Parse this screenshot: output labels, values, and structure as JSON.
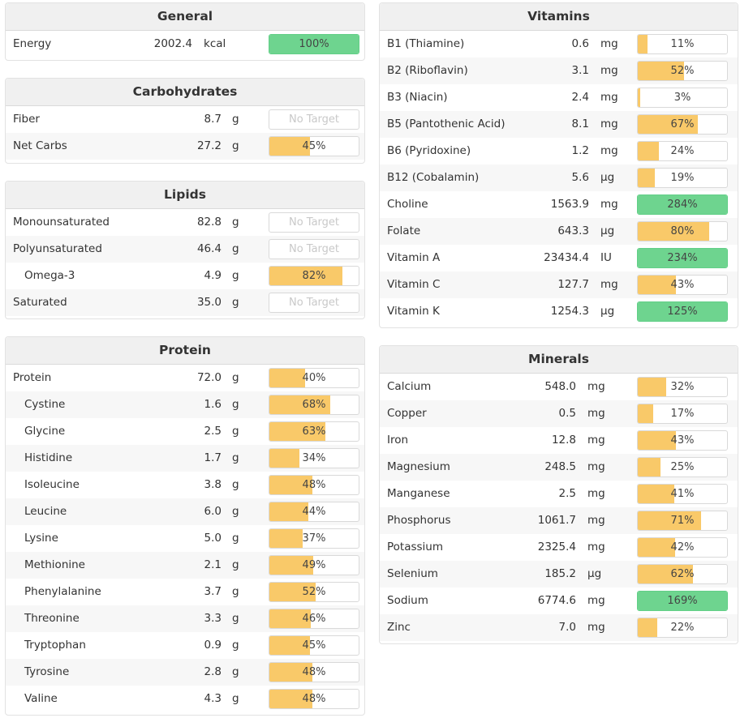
{
  "colors": {
    "yellow": "#f9c969",
    "green": "#6ed48f",
    "header_bg": "#f0f0f0"
  },
  "general": {
    "title": "General",
    "rows": [
      {
        "name": "Energy",
        "amount": "2002.4",
        "unit": "kcal",
        "pct": "100%",
        "fill": 100
      }
    ]
  },
  "carbs": {
    "title": "Carbohydrates",
    "rows": [
      {
        "name": "Fiber",
        "amount": "8.7",
        "unit": "g",
        "pct": "No Target",
        "fill": null
      },
      {
        "name": "Net Carbs",
        "amount": "27.2",
        "unit": "g",
        "pct": "45%",
        "fill": 45
      }
    ]
  },
  "lipids": {
    "title": "Lipids",
    "rows": [
      {
        "name": "Monounsaturated",
        "amount": "82.8",
        "unit": "g",
        "pct": "No Target",
        "fill": null
      },
      {
        "name": "Polyunsaturated",
        "amount": "46.4",
        "unit": "g",
        "pct": "No Target",
        "fill": null
      },
      {
        "name": "Omega-3",
        "amount": "4.9",
        "unit": "g",
        "pct": "82%",
        "fill": 82,
        "indent": true
      },
      {
        "name": "Saturated",
        "amount": "35.0",
        "unit": "g",
        "pct": "No Target",
        "fill": null
      }
    ]
  },
  "protein": {
    "title": "Protein",
    "rows": [
      {
        "name": "Protein",
        "amount": "72.0",
        "unit": "g",
        "pct": "40%",
        "fill": 40
      },
      {
        "name": "Cystine",
        "amount": "1.6",
        "unit": "g",
        "pct": "68%",
        "fill": 68,
        "indent": true
      },
      {
        "name": "Glycine",
        "amount": "2.5",
        "unit": "g",
        "pct": "63%",
        "fill": 63,
        "indent": true
      },
      {
        "name": "Histidine",
        "amount": "1.7",
        "unit": "g",
        "pct": "34%",
        "fill": 34,
        "indent": true
      },
      {
        "name": "Isoleucine",
        "amount": "3.8",
        "unit": "g",
        "pct": "48%",
        "fill": 48,
        "indent": true
      },
      {
        "name": "Leucine",
        "amount": "6.0",
        "unit": "g",
        "pct": "44%",
        "fill": 44,
        "indent": true
      },
      {
        "name": "Lysine",
        "amount": "5.0",
        "unit": "g",
        "pct": "37%",
        "fill": 37,
        "indent": true
      },
      {
        "name": "Methionine",
        "amount": "2.1",
        "unit": "g",
        "pct": "49%",
        "fill": 49,
        "indent": true
      },
      {
        "name": "Phenylalanine",
        "amount": "3.7",
        "unit": "g",
        "pct": "52%",
        "fill": 52,
        "indent": true
      },
      {
        "name": "Threonine",
        "amount": "3.3",
        "unit": "g",
        "pct": "46%",
        "fill": 46,
        "indent": true
      },
      {
        "name": "Tryptophan",
        "amount": "0.9",
        "unit": "g",
        "pct": "45%",
        "fill": 45,
        "indent": true
      },
      {
        "name": "Tyrosine",
        "amount": "2.8",
        "unit": "g",
        "pct": "48%",
        "fill": 48,
        "indent": true
      },
      {
        "name": "Valine",
        "amount": "4.3",
        "unit": "g",
        "pct": "48%",
        "fill": 48,
        "indent": true
      }
    ]
  },
  "vitamins": {
    "title": "Vitamins",
    "rows": [
      {
        "name": "B1 (Thiamine)",
        "amount": "0.6",
        "unit": "mg",
        "pct": "11%",
        "fill": 11
      },
      {
        "name": "B2 (Riboflavin)",
        "amount": "3.1",
        "unit": "mg",
        "pct": "52%",
        "fill": 52
      },
      {
        "name": "B3 (Niacin)",
        "amount": "2.4",
        "unit": "mg",
        "pct": "3%",
        "fill": 3
      },
      {
        "name": "B5 (Pantothenic Acid)",
        "amount": "8.1",
        "unit": "mg",
        "pct": "67%",
        "fill": 67
      },
      {
        "name": "B6 (Pyridoxine)",
        "amount": "1.2",
        "unit": "mg",
        "pct": "24%",
        "fill": 24
      },
      {
        "name": "B12 (Cobalamin)",
        "amount": "5.6",
        "unit": "µg",
        "pct": "19%",
        "fill": 19
      },
      {
        "name": "Choline",
        "amount": "1563.9",
        "unit": "mg",
        "pct": "284%",
        "fill": 284
      },
      {
        "name": "Folate",
        "amount": "643.3",
        "unit": "µg",
        "pct": "80%",
        "fill": 80
      },
      {
        "name": "Vitamin A",
        "amount": "23434.4",
        "unit": "IU",
        "pct": "234%",
        "fill": 234
      },
      {
        "name": "Vitamin C",
        "amount": "127.7",
        "unit": "mg",
        "pct": "43%",
        "fill": 43
      },
      {
        "name": "Vitamin K",
        "amount": "1254.3",
        "unit": "µg",
        "pct": "125%",
        "fill": 125
      }
    ]
  },
  "minerals": {
    "title": "Minerals",
    "rows": [
      {
        "name": "Calcium",
        "amount": "548.0",
        "unit": "mg",
        "pct": "32%",
        "fill": 32
      },
      {
        "name": "Copper",
        "amount": "0.5",
        "unit": "mg",
        "pct": "17%",
        "fill": 17
      },
      {
        "name": "Iron",
        "amount": "12.8",
        "unit": "mg",
        "pct": "43%",
        "fill": 43
      },
      {
        "name": "Magnesium",
        "amount": "248.5",
        "unit": "mg",
        "pct": "25%",
        "fill": 25
      },
      {
        "name": "Manganese",
        "amount": "2.5",
        "unit": "mg",
        "pct": "41%",
        "fill": 41
      },
      {
        "name": "Phosphorus",
        "amount": "1061.7",
        "unit": "mg",
        "pct": "71%",
        "fill": 71
      },
      {
        "name": "Potassium",
        "amount": "2325.4",
        "unit": "mg",
        "pct": "42%",
        "fill": 42
      },
      {
        "name": "Selenium",
        "amount": "185.2",
        "unit": "µg",
        "pct": "62%",
        "fill": 62
      },
      {
        "name": "Sodium",
        "amount": "6774.6",
        "unit": "mg",
        "pct": "169%",
        "fill": 169
      },
      {
        "name": "Zinc",
        "amount": "7.0",
        "unit": "mg",
        "pct": "22%",
        "fill": 22
      }
    ]
  }
}
